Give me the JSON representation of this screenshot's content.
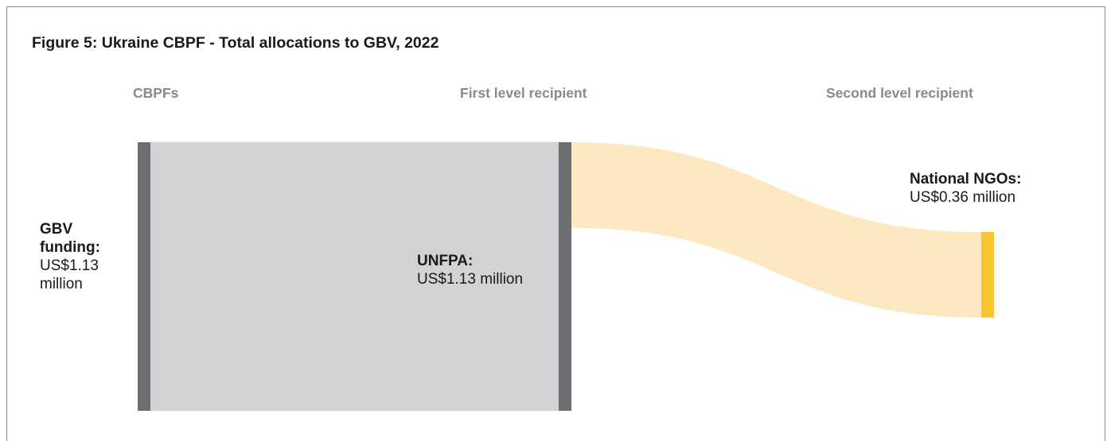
{
  "figure": {
    "title": "Figure 5: Ukraine CBPF - Total allocations to GBV, 2022"
  },
  "columns": [
    "CBPFs",
    "First level recipient",
    "Second level recipient"
  ],
  "colors": {
    "node_bar": "#6d6e71",
    "flow_main": "#d1d3d4",
    "flow_secondary": "#fde9c1",
    "node_secondary": "#fbc531",
    "column_header": "#8a8a8a"
  },
  "chart_data": {
    "type": "sankey",
    "title": "Figure 5: Ukraine CBPF - Total allocations to GBV, 2022",
    "units": "US$ million",
    "nodes": [
      {
        "id": "gbv",
        "column": "CBPFs",
        "name": "GBV funding:",
        "value_label": "US$1.13 million",
        "value": 1.13
      },
      {
        "id": "unfpa",
        "column": "First level recipient",
        "name": "UNFPA:",
        "value_label": "US$1.13 million",
        "value": 1.13
      },
      {
        "id": "ngos",
        "column": "Second level recipient",
        "name": "National NGOs:",
        "value_label": "US$0.36 million",
        "value": 0.36
      }
    ],
    "links": [
      {
        "source": "gbv",
        "target": "unfpa",
        "value": 1.13
      },
      {
        "source": "unfpa",
        "target": "ngos",
        "value": 0.36
      }
    ]
  }
}
